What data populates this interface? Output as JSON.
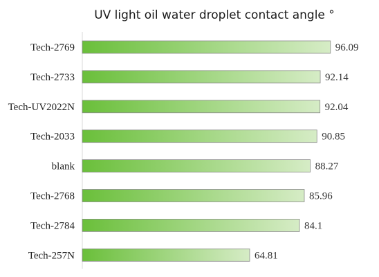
{
  "chart_data": {
    "type": "bar",
    "orientation": "horizontal",
    "title": "UV light oil water droplet contact angle °",
    "categories": [
      "Tech-2769",
      "Tech-2733",
      "Tech-UV2022N",
      "Tech-2033",
      "blank",
      "Tech-2768",
      "Tech-2784",
      "Tech-257N"
    ],
    "values": [
      96.09,
      92.14,
      92.04,
      90.85,
      88.27,
      85.96,
      84.1,
      64.81
    ],
    "value_labels": [
      "96.09",
      "92.14",
      "92.04",
      "90.85",
      "88.27",
      "85.96",
      "84.1",
      "64.81"
    ],
    "xlim": [
      0,
      100
    ],
    "grid": false,
    "legend": "none",
    "bar_gradient": [
      "#6abf3a",
      "#d6ecc6"
    ],
    "bar_border": "#8a8a8a"
  }
}
